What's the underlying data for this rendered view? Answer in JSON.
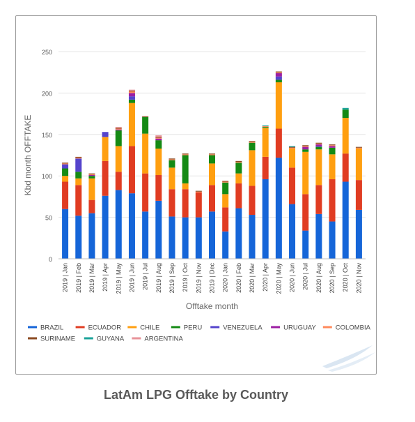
{
  "caption": "LatAm LPG Offtake by Country",
  "colors": {
    "BRAZIL": "#1565d8",
    "ECUADOR": "#e03c22",
    "CHILE": "#ff9f10",
    "PERU": "#148a14",
    "VENEZUELA": "#5544cc",
    "URUGUAY": "#9c1fa3",
    "COLOMBIA": "#ff8a5c",
    "SURINAME": "#8b4a22",
    "GUYANA": "#1aa39a",
    "ARGENTINA": "#e8939a"
  },
  "chart_data": {
    "type": "bar",
    "stacked": true,
    "title": "",
    "xlabel": "Offtake  month",
    "ylabel": "Kbd month OFFTAKE",
    "ylim": [
      0,
      250
    ],
    "yticks": [
      0,
      50,
      100,
      150,
      200,
      250
    ],
    "grid": true,
    "legend_position": "bottom",
    "categories": [
      "2019 | Jan",
      "2019 | Feb",
      "2019 | Mar",
      "2019 | Apr",
      "2019 | May",
      "2019 | Jun",
      "2019 | Jul",
      "2019 | Aug",
      "2019 | Sep",
      "2019 | Oct",
      "2019 | Nov",
      "2019 | Dec",
      "2020 | Jan",
      "2020 | Feb",
      "2020 | Mar",
      "2020 | Apr",
      "2020 | May",
      "2020 | Jun",
      "2020 | Jul",
      "2020 | Aug",
      "2020 | Sep",
      "2020 | Oct",
      "2020 | Nov"
    ],
    "series": [
      {
        "name": "BRAZIL",
        "values": [
          60,
          52,
          55,
          76,
          83,
          79,
          57,
          70,
          51,
          50,
          50,
          57,
          33,
          61,
          53,
          96,
          122,
          66,
          34,
          54,
          45,
          93,
          59
        ]
      },
      {
        "name": "ECUADOR",
        "values": [
          33,
          37,
          16,
          42,
          22,
          57,
          46,
          31,
          33,
          34,
          30,
          32,
          29,
          30,
          35,
          27,
          35,
          44,
          44,
          35,
          51,
          34,
          36
        ]
      },
      {
        "name": "CHILE",
        "values": [
          7,
          8,
          26,
          29,
          31,
          52,
          48,
          32,
          26,
          7,
          0,
          26,
          16,
          12,
          43,
          35,
          56,
          23,
          51,
          43,
          30,
          43,
          38
        ]
      },
      {
        "name": "PERU",
        "values": [
          9,
          8,
          3,
          0,
          19,
          4,
          20,
          10,
          9,
          34,
          0,
          10,
          14,
          13,
          9,
          1,
          3,
          0,
          3,
          3,
          8,
          10,
          0
        ]
      },
      {
        "name": "VENEZUELA",
        "values": [
          5,
          16,
          0,
          6,
          0,
          4,
          0,
          0,
          0,
          0,
          0,
          0,
          0,
          0,
          0,
          0,
          4,
          0,
          0,
          1,
          0,
          0,
          0
        ]
      },
      {
        "name": "URUGUAY",
        "values": [
          0,
          0,
          1,
          0,
          1,
          4,
          0,
          2,
          0,
          0,
          0,
          0,
          0,
          0,
          0,
          0,
          4,
          0,
          3,
          2,
          2,
          0,
          0
        ]
      },
      {
        "name": "COLOMBIA",
        "values": [
          1,
          1,
          1,
          0,
          1,
          2,
          0,
          1,
          1,
          1,
          1,
          1,
          1,
          1,
          1,
          1,
          1,
          1,
          1,
          1,
          1,
          0,
          1
        ]
      },
      {
        "name": "SURINAME",
        "values": [
          1,
          1,
          1,
          0,
          1,
          1,
          1,
          1,
          1,
          1,
          1,
          1,
          1,
          1,
          1,
          0,
          1,
          1,
          1,
          1,
          1,
          0,
          1
        ]
      },
      {
        "name": "GUYANA",
        "values": [
          0,
          0,
          0,
          0,
          0,
          0,
          0,
          0,
          0,
          0,
          0,
          0,
          0,
          0,
          0,
          1,
          0,
          1,
          0,
          0,
          0,
          2,
          0
        ]
      },
      {
        "name": "ARGENTINA",
        "values": [
          0,
          0,
          0,
          0,
          1,
          1,
          0,
          2,
          0,
          0,
          0,
          0,
          0,
          0,
          0,
          0,
          0,
          0,
          0,
          0,
          0,
          0,
          0
        ]
      }
    ]
  }
}
